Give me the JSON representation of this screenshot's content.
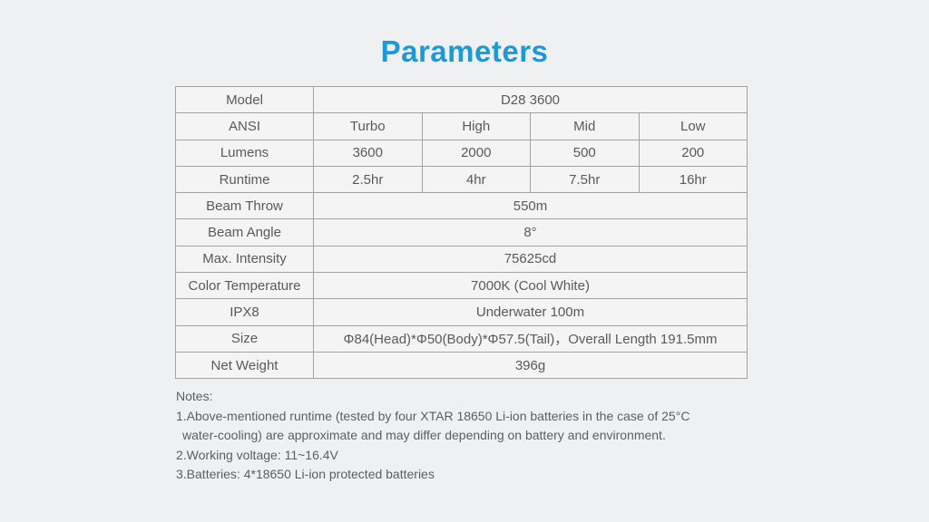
{
  "title": "Parameters",
  "colors": {
    "accent": "#1c9ad7",
    "background": "#eff0f1",
    "table_background": "#f4f4f5",
    "border": "#a2a3a5",
    "text": "#595a5c"
  },
  "table": {
    "rows": [
      {
        "label": "Model",
        "values": [
          "D28 3600"
        ]
      },
      {
        "label": "ANSI",
        "values": [
          "Turbo",
          "High",
          "Mid",
          "Low"
        ]
      },
      {
        "label": "Lumens",
        "values": [
          "3600",
          "2000",
          "500",
          "200"
        ]
      },
      {
        "label": "Runtime",
        "values": [
          "2.5hr",
          "4hr",
          "7.5hr",
          "16hr"
        ]
      },
      {
        "label": "Beam Throw",
        "values": [
          "550m"
        ]
      },
      {
        "label": "Beam Angle",
        "values": [
          "8°"
        ]
      },
      {
        "label": "Max. Intensity",
        "values": [
          "75625cd"
        ]
      },
      {
        "label": "Color Temperature",
        "values": [
          "7000K (Cool White)"
        ]
      },
      {
        "label": "IPX8",
        "values": [
          "Underwater 100m"
        ]
      },
      {
        "label": "Size",
        "values": [
          "Φ84(Head)*Φ50(Body)*Φ57.5(Tail)，Overall Length 191.5mm"
        ]
      },
      {
        "label": "Net Weight",
        "values": [
          "396g"
        ]
      }
    ]
  },
  "notes": {
    "heading": "Notes:",
    "lines": [
      "1.Above-mentioned runtime (tested by four XTAR 18650 Li-ion batteries in the case of 25°C",
      "water-cooling) are approximate and may differ depending on battery and environment.",
      "2.Working voltage: 11~16.4V",
      "3.Batteries: 4*18650 Li-ion protected batteries"
    ]
  }
}
